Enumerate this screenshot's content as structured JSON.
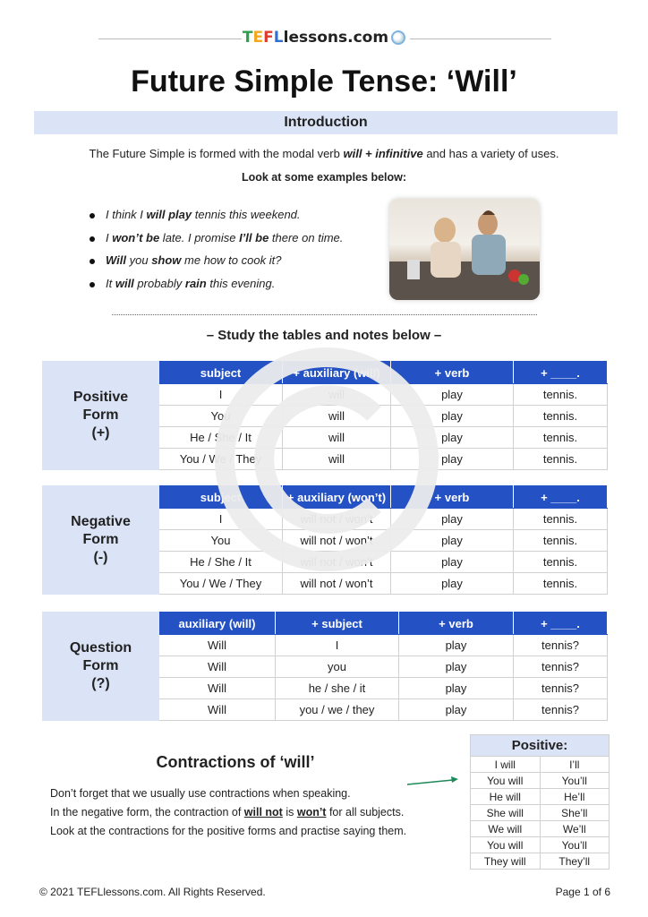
{
  "logo": {
    "t": "T",
    "e": "E",
    "f": "F",
    "l": "L",
    "rest": "lessons.com",
    "icon": "globe-icon"
  },
  "title": "Future Simple Tense: ‘Will’",
  "intro": {
    "heading": "Introduction",
    "sentence": [
      {
        "t": "The Future Simple is formed with the modal verb "
      },
      {
        "t": "will + infinitive",
        "b": 1,
        "i": 1
      },
      {
        "t": " and has a variety of uses."
      }
    ],
    "look": "Look at some examples below:"
  },
  "examples": [
    [
      {
        "t": "I think I "
      },
      {
        "t": "will play",
        "b": 1
      },
      {
        "t": " tennis this weekend."
      }
    ],
    [
      {
        "t": "I "
      },
      {
        "t": "won’t be",
        "b": 1
      },
      {
        "t": " late. I promise "
      },
      {
        "t": "I’ll be",
        "b": 1
      },
      {
        "t": " there on time."
      }
    ],
    [
      {
        "t": "Will",
        "b": 1
      },
      {
        "t": " you "
      },
      {
        "t": "show",
        "b": 1
      },
      {
        "t": " me how to cook it?"
      }
    ],
    [
      {
        "t": "It "
      },
      {
        "t": "will",
        "b": 1
      },
      {
        "t": " probably "
      },
      {
        "t": "rain",
        "b": 1
      },
      {
        "t": " this evening."
      }
    ]
  ],
  "study": "– Study the tables and notes below –",
  "tables": [
    {
      "label": [
        "Positive",
        "Form",
        "(+)"
      ],
      "headers": [
        "subject",
        "+ auxiliary (will)",
        "+ verb",
        "+ ____."
      ],
      "rows": [
        [
          "I",
          "will",
          "play",
          "tennis."
        ],
        [
          "You",
          "will",
          "play",
          "tennis."
        ],
        [
          "He / She / It",
          "will",
          "play",
          "tennis."
        ],
        [
          "You / We / They",
          "will",
          "play",
          "tennis."
        ]
      ]
    },
    {
      "label": [
        "Negative",
        "Form",
        "(-)"
      ],
      "headers": [
        "subject",
        "+ auxiliary (won’t)",
        "+ verb",
        "+ ____."
      ],
      "rows": [
        [
          "I",
          "will not / won’t",
          "play",
          "tennis."
        ],
        [
          "You",
          "will not / won’t",
          "play",
          "tennis."
        ],
        [
          "He / She / It",
          "will not / won’t",
          "play",
          "tennis."
        ],
        [
          "You / We / They",
          "will not / won’t",
          "play",
          "tennis."
        ]
      ]
    },
    {
      "label": [
        "Question",
        "Form",
        "(?)"
      ],
      "headers": [
        "auxiliary (will)",
        "+ subject",
        "+ verb",
        "+ ____."
      ],
      "rows": [
        [
          "Will",
          "I",
          "play",
          "tennis?"
        ],
        [
          "Will",
          "you",
          "play",
          "tennis?"
        ],
        [
          "Will",
          "he / she / it",
          "play",
          "tennis?"
        ],
        [
          "Will",
          "you / we / they",
          "play",
          "tennis?"
        ]
      ]
    }
  ],
  "contractions": {
    "heading": "Contractions of ‘will’",
    "lines": [
      [
        {
          "t": "Don’t forget that we usually use contractions when speaking."
        }
      ],
      [
        {
          "t": "In the negative form, the contraction of "
        },
        {
          "t": "will not",
          "b": 1,
          "u": 1
        },
        {
          "t": " is "
        },
        {
          "t": "won’t",
          "b": 1,
          "u": 1
        },
        {
          "t": " for all subjects."
        }
      ],
      [
        {
          "t": "Look at the contractions for the positive forms and practise saying them."
        }
      ]
    ],
    "table_title": "Positive:",
    "rows": [
      [
        "I will",
        "I’ll"
      ],
      [
        "You will",
        "You’ll"
      ],
      [
        "He will",
        "He’ll"
      ],
      [
        "She will",
        "She’ll"
      ],
      [
        "We will",
        "We’ll"
      ],
      [
        "You will",
        "You’ll"
      ],
      [
        "They will",
        "They’ll"
      ]
    ]
  },
  "footer": {
    "copyright": "© 2021 TEFLlessons.com. All Rights Reserved.",
    "page": "Page 1 of 6"
  },
  "colors": {
    "header_blue": "#2451c4",
    "label_bg": "#dbe4f7",
    "arrow": "#1e8a5a",
    "watermark": "#ececec"
  }
}
